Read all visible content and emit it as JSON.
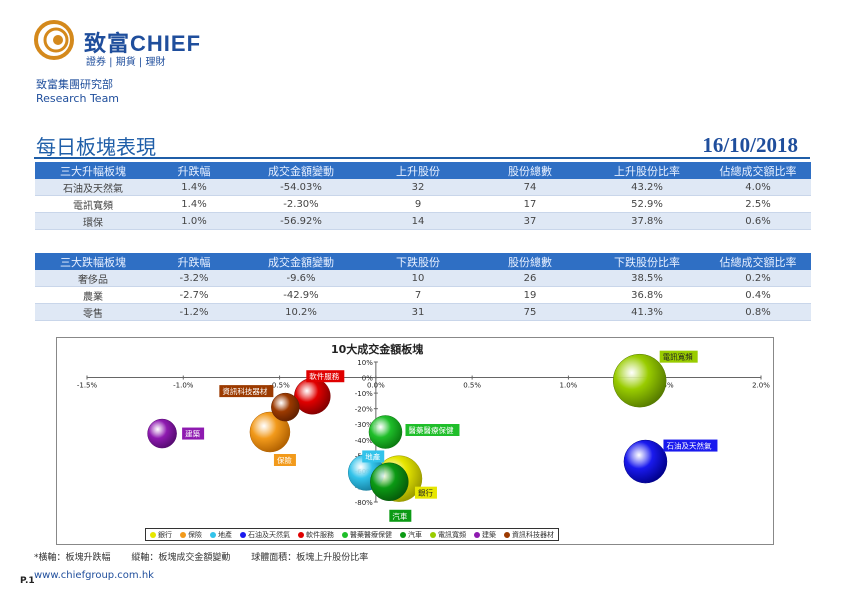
{
  "brand": {
    "name_cn": "致富",
    "name_en": "CHIEF",
    "tagline": "證券 | 期貨 | 理財"
  },
  "department": {
    "line1": "致富集團研究部",
    "line2": "Research Team"
  },
  "page_title": "每日板塊表現",
  "report_date": "16/10/2018",
  "top_gainers": {
    "headers": [
      "三大升幅板塊",
      "升跌幅",
      "成交金額變動",
      "上升股份",
      "股份總數",
      "上升股份比率",
      "佔總成交額比率"
    ],
    "rows": [
      [
        "石油及天然氣",
        "1.4%",
        "-54.03%",
        "32",
        "74",
        "43.2%",
        "4.0%"
      ],
      [
        "電訊寬頻",
        "1.4%",
        "-2.30%",
        "9",
        "17",
        "52.9%",
        "2.5%"
      ],
      [
        "環保",
        "1.0%",
        "-56.92%",
        "14",
        "37",
        "37.8%",
        "0.6%"
      ]
    ]
  },
  "top_losers": {
    "headers": [
      "三大跌幅板塊",
      "升跌幅",
      "成交金額變動",
      "下跌股份",
      "股份總數",
      "下跌股份比率",
      "佔總成交額比率"
    ],
    "rows": [
      [
        "奢侈品",
        "-3.2%",
        "-9.6%",
        "10",
        "26",
        "38.5%",
        "0.2%"
      ],
      [
        "農業",
        "-2.7%",
        "-42.9%",
        "7",
        "19",
        "36.8%",
        "0.4%"
      ],
      [
        "零售",
        "-1.2%",
        "10.2%",
        "31",
        "75",
        "41.3%",
        "0.8%"
      ]
    ]
  },
  "chart_data": {
    "type": "scatter",
    "title": "10大成交金額板塊",
    "xlim": [
      -1.5,
      2.0
    ],
    "ylim": [
      -80,
      10
    ],
    "x_ticks": [
      "-1.5%",
      "-1.0%",
      "-0.5%",
      "0.0%",
      "0.5%",
      "1.0%",
      "1.5%",
      "2.0%"
    ],
    "y_ticks": [
      "10%",
      "0%",
      "-10%",
      "-20%",
      "-30%",
      "-40%",
      "-50%",
      "-60%",
      "-70%",
      "-80%"
    ],
    "series": [
      {
        "name": "銀行",
        "x": 0.12,
        "y": -65,
        "size": 46,
        "color": "#e6e600",
        "border": "#999900"
      },
      {
        "name": "保險",
        "x": -0.55,
        "y": -35,
        "size": 40,
        "color": "#f29a1b",
        "border": "#b06000"
      },
      {
        "name": "地產",
        "x": -0.05,
        "y": -61,
        "size": 36,
        "color": "#33c3ea",
        "border": "#1580a0"
      },
      {
        "name": "石油及天然氣",
        "x": 1.4,
        "y": -54,
        "size": 43,
        "color": "#1a1aee",
        "border": "#00008a"
      },
      {
        "name": "軟件服務",
        "x": -0.33,
        "y": -12,
        "size": 36,
        "color": "#e00000",
        "border": "#800000"
      },
      {
        "name": "醫藥醫療保健",
        "x": 0.05,
        "y": -35,
        "size": 33,
        "color": "#1fbe2a",
        "border": "#0a7a10"
      },
      {
        "name": "汽車",
        "x": 0.07,
        "y": -67,
        "size": 38,
        "color": "#0b9a14",
        "border": "#065a0a"
      },
      {
        "name": "電訊寬頻",
        "x": 1.37,
        "y": -2,
        "size": 53,
        "color": "#99cc00",
        "border": "#557a00"
      },
      {
        "name": "建築",
        "x": -1.11,
        "y": -36,
        "size": 29,
        "color": "#8e1ab0",
        "border": "#550a70"
      },
      {
        "name": "資訊科技器材",
        "x": -0.47,
        "y": -19,
        "size": 28,
        "color": "#9c3a00",
        "border": "#602000"
      }
    ],
    "label_colors": {
      "銀行": "#e6e600",
      "保險": "#f29a1b",
      "地產": "#33c3ea",
      "石油及天然氣": "#1a1aee",
      "軟件服務": "#e00000",
      "醫藥醫療保健": "#1fbe2a",
      "汽車": "#0b9a14",
      "電訊寬頻": "#99cc00",
      "建築": "#8e1ab0",
      "資訊科技器材": "#9c3a00"
    }
  },
  "footnote": {
    "x_axis": "*橫軸：板塊升跌幅",
    "y_axis": "縱軸：板塊成交金額變動",
    "bubble": "球體面積：板塊上升股份比率"
  },
  "page_number": "P.1",
  "website": "www.chiefgroup.com.hk"
}
